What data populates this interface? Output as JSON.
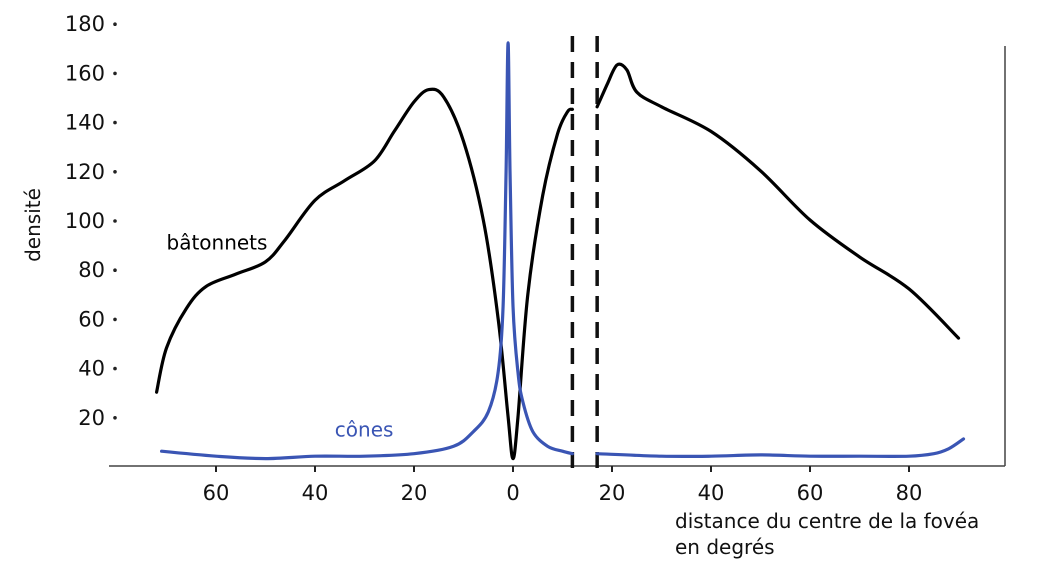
{
  "chart_data": {
    "type": "line",
    "xlabel_lines": [
      "distance du centre de la fovéa",
      "en degrés"
    ],
    "ylabel": "densité",
    "x_tick_values": [
      -60,
      -40,
      -20,
      0,
      20,
      40,
      60,
      80
    ],
    "x_tick_labels": [
      "60",
      "40",
      "20",
      "0",
      "20",
      "40",
      "60",
      "80"
    ],
    "y_ticks": [
      20,
      40,
      60,
      80,
      100,
      120,
      140,
      160,
      180
    ],
    "xlim": [
      -80,
      100
    ],
    "ylim": [
      0,
      180
    ],
    "dashed_lines_x": [
      12,
      17
    ],
    "series": [
      {
        "name": "bâtonnets",
        "color": "#000000",
        "segments": [
          [
            [
              -72,
              30
            ],
            [
              -70,
              48
            ],
            [
              -66,
              64
            ],
            [
              -62,
              73
            ],
            [
              -56,
              78
            ],
            [
              -50,
              83
            ],
            [
              -46,
              92
            ],
            [
              -40,
              108
            ],
            [
              -34,
              116
            ],
            [
              -28,
              124
            ],
            [
              -24,
              136
            ],
            [
              -20,
              148
            ],
            [
              -17,
              153
            ],
            [
              -14,
              150
            ],
            [
              -10,
              132
            ],
            [
              -6,
              100
            ],
            [
              -3,
              60
            ],
            [
              -1,
              20
            ],
            [
              0,
              3
            ],
            [
              1,
              20
            ],
            [
              3,
              70
            ],
            [
              6,
              110
            ],
            [
              9,
              135
            ],
            [
              11,
              144
            ],
            [
              12,
              145
            ]
          ],
          [
            [
              17,
              146
            ],
            [
              19,
              155
            ],
            [
              21,
              163
            ],
            [
              23,
              161
            ],
            [
              25,
              152
            ],
            [
              30,
              146
            ],
            [
              40,
              136
            ],
            [
              50,
              120
            ],
            [
              60,
              100
            ],
            [
              70,
              85
            ],
            [
              80,
              72
            ],
            [
              90,
              52
            ]
          ]
        ]
      },
      {
        "name": "cônes",
        "color": "#3a55b4",
        "segments": [
          [
            [
              -71,
              6
            ],
            [
              -60,
              4
            ],
            [
              -50,
              3
            ],
            [
              -40,
              4
            ],
            [
              -30,
              4
            ],
            [
              -20,
              5
            ],
            [
              -12,
              8
            ],
            [
              -8,
              14
            ],
            [
              -5,
              22
            ],
            [
              -3,
              38
            ],
            [
              -2,
              65
            ],
            [
              -1.4,
              120
            ],
            [
              -1,
              172
            ],
            [
              -0.6,
              120
            ],
            [
              0,
              65
            ],
            [
              1,
              38
            ],
            [
              2,
              26
            ],
            [
              4,
              14
            ],
            [
              7,
              8
            ],
            [
              10,
              6
            ],
            [
              12,
              5
            ]
          ],
          [
            [
              17,
              5
            ],
            [
              30,
              4
            ],
            [
              40,
              4
            ],
            [
              50,
              4.5
            ],
            [
              60,
              4
            ],
            [
              70,
              4
            ],
            [
              80,
              4
            ],
            [
              85,
              5
            ],
            [
              88,
              7
            ],
            [
              91,
              11
            ]
          ]
        ]
      }
    ],
    "series_labels": [
      {
        "text": "bâtonnets",
        "x": -70,
        "y": 88,
        "color": "#000000"
      },
      {
        "text": "cônes",
        "x": -36,
        "y": 12,
        "color": "#3a55b4"
      }
    ],
    "grid": false,
    "legend": "none"
  }
}
